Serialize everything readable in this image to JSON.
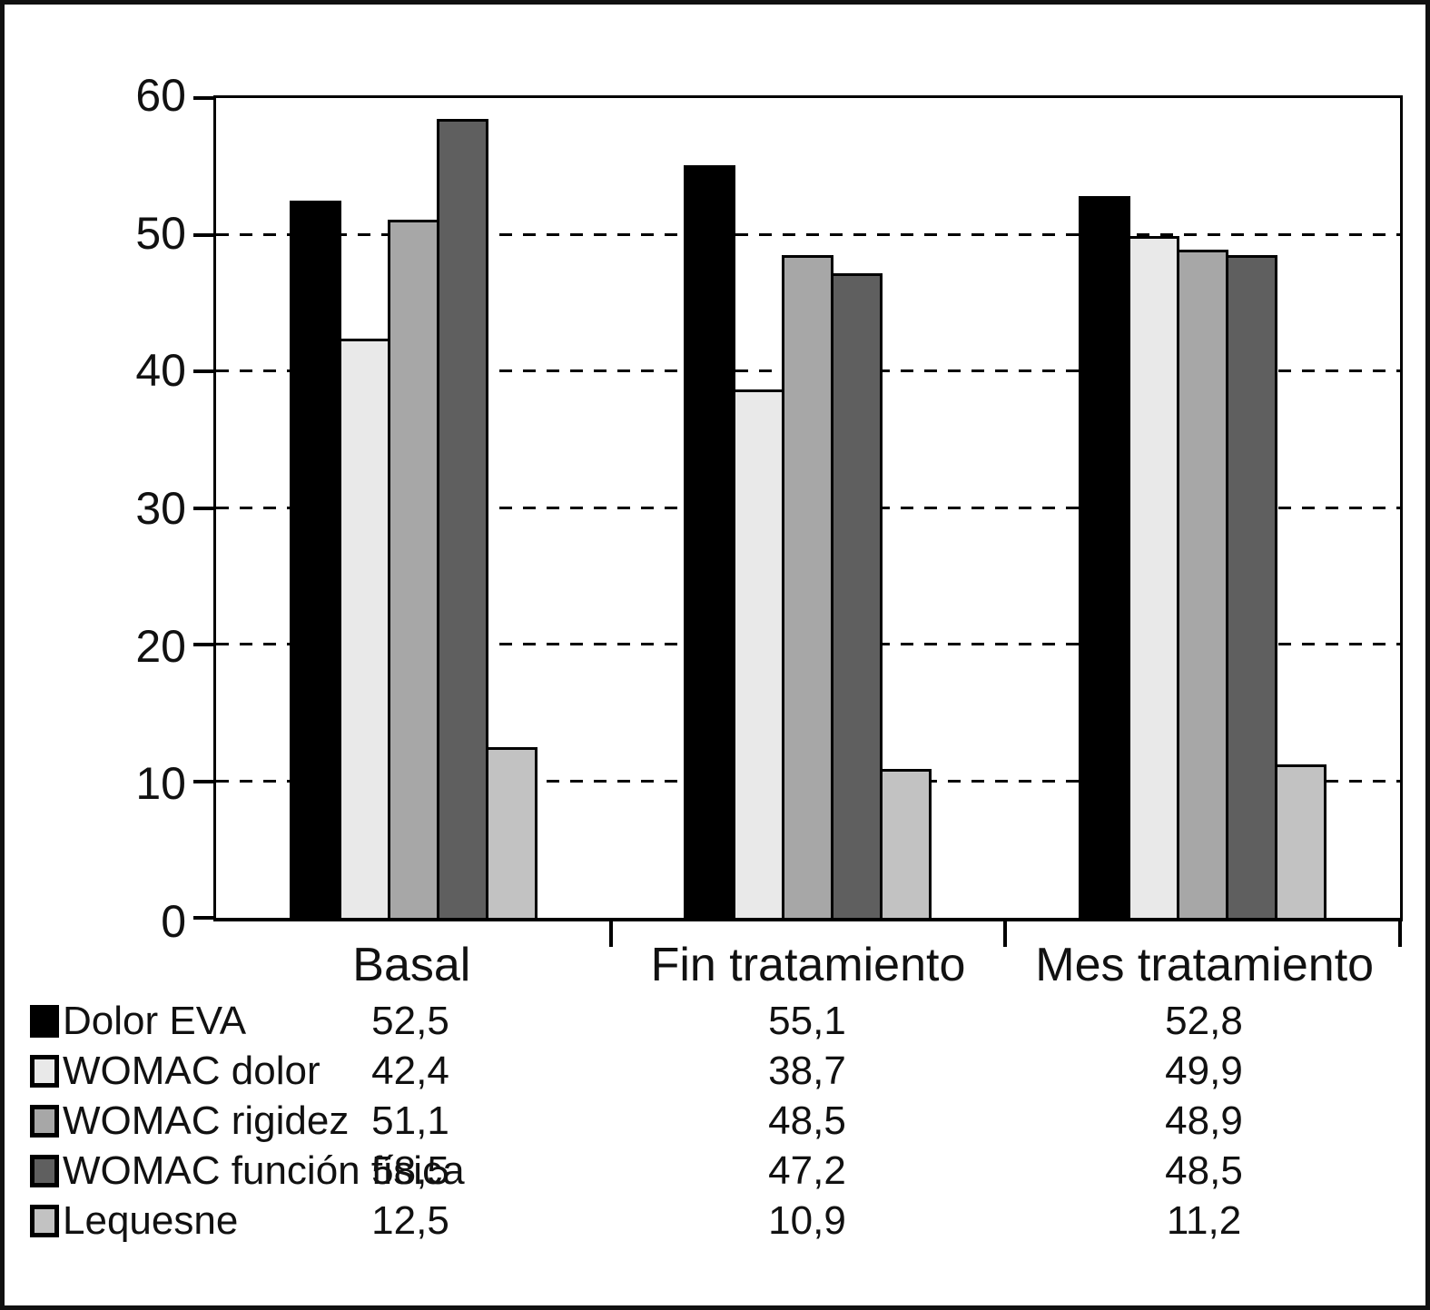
{
  "figure": {
    "background": "#ffffff",
    "frame_color": "#000000"
  },
  "chart_data": {
    "type": "bar",
    "title": "",
    "xlabel": "",
    "ylabel": "",
    "categories": [
      "Basal",
      "Fin tratamiento",
      "Mes tratamiento"
    ],
    "series": [
      {
        "name": "Dolor EVA",
        "color": "#000000",
        "values": [
          52.5,
          55.1,
          52.8
        ],
        "display": [
          "52,5",
          "55,1",
          "52,8"
        ]
      },
      {
        "name": "WOMAC dolor",
        "color": "#e9e9e9",
        "values": [
          42.4,
          38.7,
          49.9
        ],
        "display": [
          "42,4",
          "38,7",
          "49,9"
        ]
      },
      {
        "name": "WOMAC rigidez",
        "color": "#a7a7a7",
        "values": [
          51.1,
          48.5,
          48.9
        ],
        "display": [
          "51,1",
          "48,5",
          "48,9"
        ]
      },
      {
        "name": "WOMAC función física",
        "color": "#5f5f5f",
        "values": [
          58.5,
          47.2,
          48.5
        ],
        "display": [
          "58,5",
          "47,2",
          "48,5"
        ]
      },
      {
        "name": "Lequesne",
        "color": "#c2c2c2",
        "values": [
          12.5,
          10.9,
          11.2
        ],
        "display": [
          "12,5",
          "10,9",
          "11,2"
        ]
      }
    ],
    "ylim": [
      0,
      60
    ],
    "yticks": [
      0,
      10,
      20,
      30,
      40,
      50,
      60
    ],
    "gridlines": [
      10,
      20,
      30,
      40,
      50
    ],
    "grid_style": "dashed",
    "legend_position": "table-below"
  }
}
